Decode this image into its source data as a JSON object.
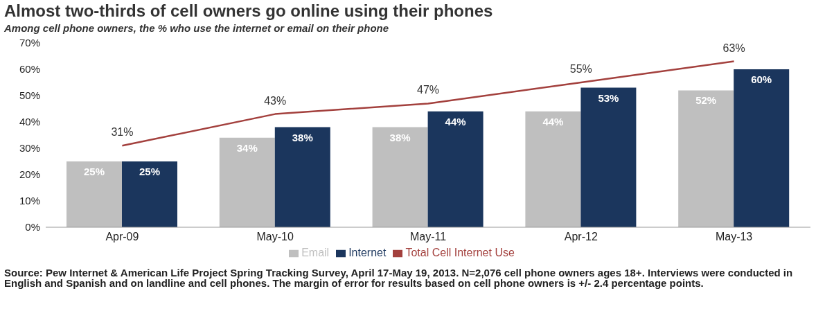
{
  "chart_data": {
    "type": "bar",
    "title": "Almost two-thirds of cell owners go online using their phones",
    "subtitle": "Among cell phone owners, the % who use the internet or email on their phone",
    "categories": [
      "Apr-09",
      "May-10",
      "May-11",
      "Apr-12",
      "May-13"
    ],
    "series": [
      {
        "name": "Email",
        "color": "#bfbfbf",
        "values": [
          25,
          34,
          38,
          44,
          52
        ],
        "value_labels": [
          "25%",
          "34%",
          "38%",
          "44%",
          "52%"
        ]
      },
      {
        "name": "Internet",
        "color": "#1b365d",
        "values": [
          25,
          38,
          44,
          53,
          60
        ],
        "value_labels": [
          "25%",
          "38%",
          "44%",
          "53%",
          "60%"
        ]
      },
      {
        "name": "Total Cell Internet Use",
        "type": "line",
        "color": "#a3403d",
        "values": [
          31,
          43,
          47,
          55,
          63
        ],
        "value_labels": [
          "31%",
          "43%",
          "47%",
          "55%",
          "63%"
        ]
      }
    ],
    "ylim": [
      0,
      70
    ],
    "yticks": [
      {
        "value": 0,
        "label": "0%"
      },
      {
        "value": 10,
        "label": "10%"
      },
      {
        "value": 20,
        "label": "20%"
      },
      {
        "value": 30,
        "label": "30%"
      },
      {
        "value": 40,
        "label": "40%"
      },
      {
        "value": 50,
        "label": "50%"
      },
      {
        "value": 60,
        "label": "60%"
      },
      {
        "value": 70,
        "label": "70%"
      }
    ],
    "grid": false,
    "legend": "bottom",
    "marker": "none",
    "annotations": [
      "Source: Pew Internet & American Life Project Spring Tracking Survey, April 17-May 19, 2013. N=2,076 cell phone owners ages 18+.  Interviews were conducted in English and Spanish and on landline and cell phones.  The margin of error for results based on cell phone owners is +/- 2.4 percentage points."
    ]
  }
}
